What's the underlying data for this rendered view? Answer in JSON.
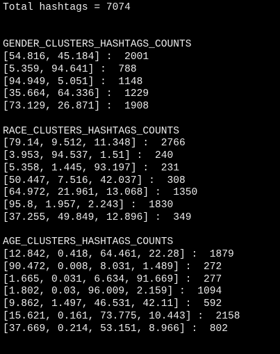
{
  "header": {
    "total": "Total hashtags = 7074"
  },
  "sections": [
    {
      "title": "GENDER_CLUSTERS_HASHTAGS_COUNTS",
      "lines": [
        "[54.816, 45.184] :  2001",
        "[5.359, 94.641] :  788",
        "[94.949, 5.051] :  1148",
        "[35.664, 64.336] :  1229",
        "[73.129, 26.871] :  1908"
      ]
    },
    {
      "title": "RACE_CLUSTERS_HASHTAGS_COUNTS",
      "lines": [
        "[79.14, 9.512, 11.348] :  2766",
        "[3.953, 94.537, 1.51] :  240",
        "[5.358, 1.445, 93.197] :  231",
        "[50.447, 7.516, 42.037] :  308",
        "[64.972, 21.961, 13.068] :  1350",
        "[95.8, 1.957, 2.243] :  1830",
        "[37.255, 49.849, 12.896] :  349"
      ]
    },
    {
      "title": "AGE_CLUSTERS_HASHTAGS_COUNTS",
      "lines": [
        "[12.842, 0.418, 64.461, 22.28] :  1879",
        "[90.472, 0.008, 8.031, 1.489] :  272",
        "[1.665, 0.031, 6.634, 91.669] :  277",
        "[1.802, 0.03, 96.009, 2.159] :  1094",
        "[9.862, 1.497, 46.531, 42.11] :  592",
        "[15.621, 0.161, 73.775, 10.443] :  2158",
        "[37.669, 0.214, 53.151, 8.966] :  802"
      ]
    }
  ]
}
